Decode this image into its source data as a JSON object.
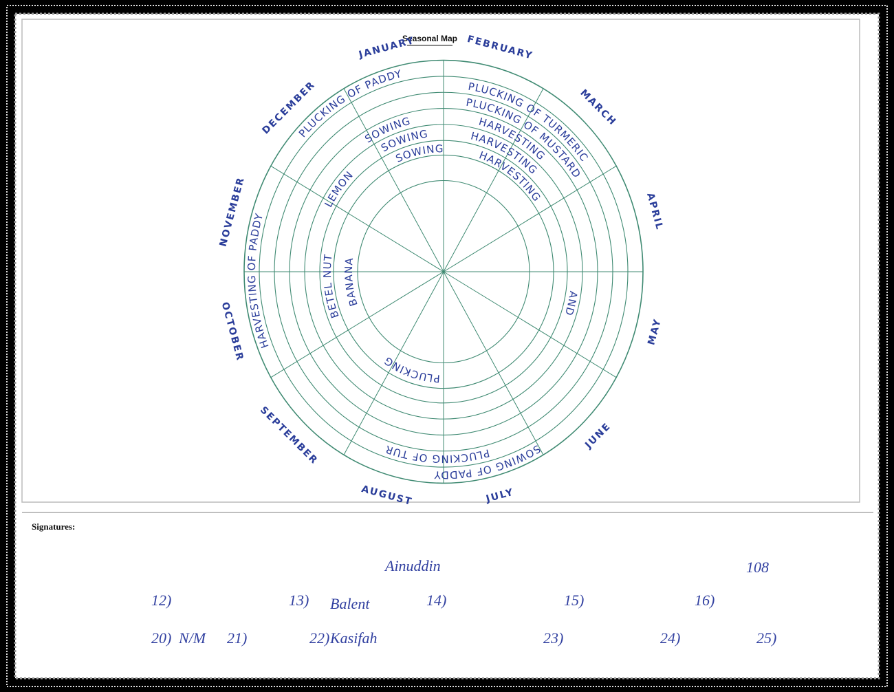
{
  "header": {
    "title": "Seasonal Map"
  },
  "months": [
    "JANUARY",
    "FEBRUARY",
    "MARCH",
    "APRIL",
    "MAY",
    "JUNE",
    "JULY",
    "AUGUST",
    "SEPTEMBER",
    "OCTOBER",
    "NOVEMBER",
    "DECEMBER"
  ],
  "activities": [
    "PLUCKING OF PADDY",
    "PLUCKING OF TURMERIC",
    "PLUCKING OF MUSTARD",
    "SOWING",
    "HARVESTING",
    "SOWING",
    "HARVESTING",
    "SOWING",
    "HARVESTING",
    "HARVESTING OF PADDY",
    "LEMON",
    "BETEL NUT",
    "BANANA",
    "SOWING OF PADDY",
    "PLUCKING OF TURMERIC",
    "PLUCKING",
    "AND"
  ],
  "signatures": {
    "label": "Signatures:",
    "entries": [
      "Ainuddin",
      "Balent",
      "N/M",
      "Kasifah",
      "108",
      "12)",
      "13)",
      "14)",
      "15)",
      "16)",
      "20)",
      "21)",
      "22)",
      "23)",
      "24)",
      "25)"
    ]
  }
}
